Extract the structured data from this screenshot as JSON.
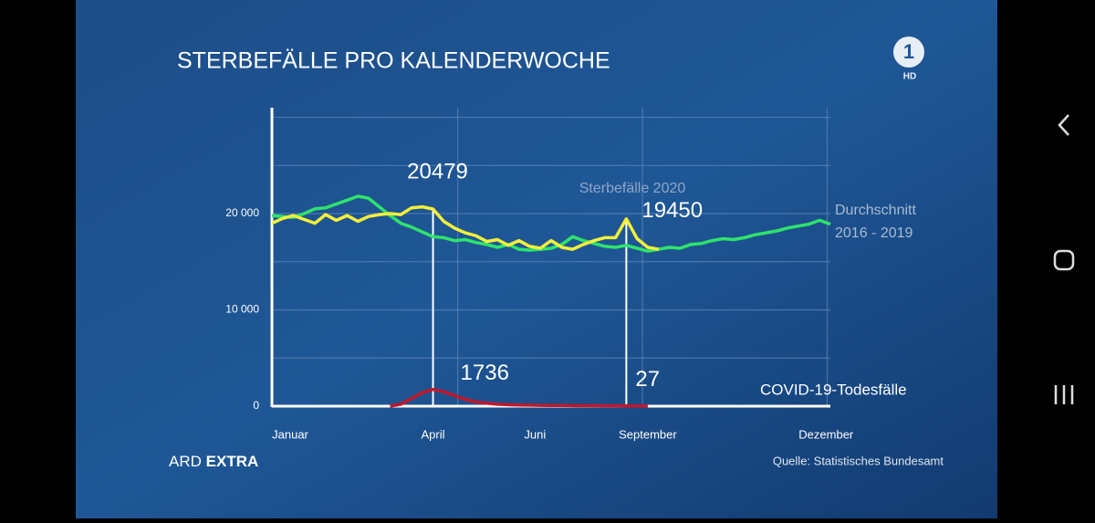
{
  "header": {
    "title": "STERBEFÄLLE PRO KALENDERWOCHE",
    "logo": "1",
    "logo_sub": "HD"
  },
  "footer": {
    "brand": "ARD",
    "brand_bold": "EXTRA",
    "source": "Quelle: Statistisches Bundesamt"
  },
  "chart_data": {
    "type": "line",
    "x": [
      1,
      2,
      3,
      4,
      5,
      6,
      7,
      8,
      9,
      10,
      11,
      12,
      13,
      14,
      15,
      16,
      17,
      18,
      19,
      20,
      21,
      22,
      23,
      24,
      25,
      26,
      27,
      28,
      29,
      30,
      31,
      32,
      33,
      34,
      35,
      36,
      37,
      38,
      39,
      40,
      41,
      42,
      43,
      44,
      45,
      46,
      47,
      48,
      49,
      50,
      51,
      52,
      53
    ],
    "xlim": [
      1,
      53
    ],
    "xticks": [
      {
        "value": 2.7,
        "label": "Januar"
      },
      {
        "value": 16,
        "label": "April"
      },
      {
        "value": 25.5,
        "label": "Juni"
      },
      {
        "value": 36,
        "label": "September"
      },
      {
        "value": 52.6,
        "label": "Dezember"
      }
    ],
    "xgrid": [
      18.3,
      35.5,
      52.7
    ],
    "ylim": [
      0,
      31000
    ],
    "yticks": [
      0,
      {
        "value": 10000,
        "label": "10 000"
      },
      {
        "value": 20000,
        "label": "20 000"
      }
    ],
    "ygrid": [
      5000,
      10000,
      15000,
      20000,
      25000,
      30000
    ],
    "highlights": [
      16,
      34
    ],
    "series": [
      {
        "name": "Durchschnitt 2016 - 2019",
        "color": "#2fe26c",
        "values": [
          19800,
          19700,
          19600,
          20000,
          20500,
          20600,
          21000,
          21400,
          21800,
          21600,
          20700,
          19800,
          19000,
          18600,
          18100,
          17600,
          17500,
          17200,
          17300,
          17000,
          16800,
          16500,
          16800,
          16300,
          16200,
          16300,
          16400,
          16800,
          17600,
          17200,
          16900,
          16600,
          16500,
          16700,
          16400,
          16100,
          16300,
          16500,
          16400,
          16800,
          16900,
          17200,
          17400,
          17300,
          17500,
          17800,
          18000,
          18200,
          18500,
          18700,
          18900,
          19300,
          18900
        ]
      },
      {
        "name": "Sterbefälle 2020",
        "color": "#f4ef3a",
        "values": [
          19000,
          19500,
          19800,
          19400,
          19000,
          19900,
          19300,
          19800,
          19200,
          19700,
          19900,
          20000,
          19900,
          20600,
          20700,
          20479,
          19200,
          18500,
          18000,
          17700,
          17100,
          17300,
          16700,
          17200,
          16600,
          16400,
          17200,
          16500,
          16300,
          16800,
          17200,
          17500,
          17500,
          19450,
          17400,
          16500,
          16300,
          null,
          null,
          null,
          null,
          null,
          null,
          null,
          null,
          null,
          null,
          null,
          null,
          null,
          null,
          null,
          null
        ]
      },
      {
        "name": "COVID-19-Todesfälle",
        "color": "#c0182c",
        "values": [
          null,
          null,
          null,
          null,
          null,
          null,
          null,
          null,
          null,
          null,
          null,
          0,
          200,
          800,
          1400,
          1736,
          1500,
          1100,
          700,
          450,
          300,
          200,
          150,
          120,
          100,
          90,
          80,
          70,
          60,
          50,
          45,
          40,
          35,
          27,
          25,
          20,
          null,
          null,
          null,
          null,
          null,
          null,
          null,
          null,
          null,
          null,
          null,
          null,
          null,
          null,
          null,
          null,
          null
        ]
      }
    ]
  }
}
